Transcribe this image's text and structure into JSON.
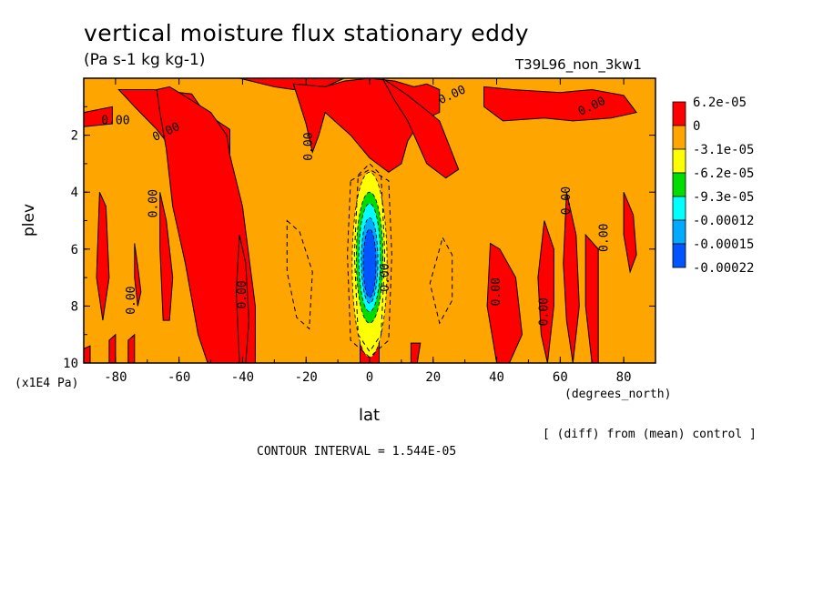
{
  "title": "vertical moisture flux stationary eddy",
  "units": "(Pa s-1 kg kg-1)",
  "experiment": "T39L96_non_3kw1",
  "footer": {
    "diff_note": "[ (diff) from (mean) control ]",
    "contour_interval": "CONTOUR INTERVAL = 1.544E-05"
  },
  "chart_data": {
    "type": "heatmap",
    "xlabel": "lat",
    "xunits": "(degrees_north)",
    "ylabel": "plev",
    "yunits": "(x1E4 Pa)",
    "xlim": [
      -90,
      90
    ],
    "ylim": [
      10,
      0
    ],
    "x_ticks": [
      -80,
      -60,
      -40,
      -20,
      0,
      20,
      40,
      60,
      80
    ],
    "y_ticks": [
      2,
      4,
      6,
      8,
      10
    ],
    "contour_label": "0.00",
    "colorbar": {
      "labels": [
        "6.2e-05",
        "0",
        "-3.1e-05",
        "-6.2e-05",
        "-9.3e-05",
        "-0.00012",
        "-0.00015",
        "-0.00022"
      ],
      "colors": [
        "#ff0000",
        "#ffa500",
        "#ffff00",
        "#00dd00",
        "#00ffff",
        "#00aaff",
        "#0055ff"
      ]
    },
    "background_color": "#ffa500",
    "positive_regions": [
      {
        "lon": [
          -90,
          -81,
          -81,
          -90
        ],
        "lev": [
          1.2,
          1.0,
          1.6,
          1.7
        ]
      },
      {
        "lon": [
          -79,
          -68,
          -56,
          -52,
          -44,
          -44,
          -54,
          -60,
          -67,
          -74
        ],
        "lev": [
          0.4,
          0.4,
          0.55,
          1.2,
          1.8,
          2.7,
          3.0,
          2.8,
          1.8,
          1.0
        ]
      },
      {
        "lon": [
          -67,
          -63,
          -60,
          -50,
          -45,
          -44,
          -40,
          -36,
          -36,
          -51,
          -54,
          -58,
          -62,
          -64,
          -66
        ],
        "lev": [
          0.4,
          0.3,
          0.5,
          1.2,
          2.0,
          2.7,
          4.5,
          8.0,
          10.0,
          10.0,
          9.0,
          6.5,
          4.5,
          2.5,
          1.2
        ]
      },
      {
        "lon": [
          -41,
          -30,
          -24,
          -14,
          -8,
          -8,
          -10,
          -20,
          -30,
          -38
        ],
        "lev": [
          0.0,
          0.3,
          0.4,
          0.3,
          0.0,
          0.0,
          0.0,
          0.0,
          0.0,
          0.0
        ]
      },
      {
        "lon": [
          -24,
          -14,
          -8,
          0,
          8,
          14,
          18,
          22,
          22,
          16,
          12,
          10,
          6,
          0,
          -6,
          -10,
          -14,
          -16,
          -18,
          -20
        ],
        "lev": [
          0.2,
          0.3,
          0.1,
          0.0,
          0.1,
          0.3,
          0.2,
          0.4,
          1.2,
          1.5,
          2.2,
          3.0,
          3.3,
          2.8,
          2.0,
          1.6,
          1.2,
          2.0,
          2.6,
          1.6
        ]
      },
      {
        "lon": [
          4,
          12,
          22,
          28,
          24,
          18,
          14,
          12,
          8
        ],
        "lev": [
          0.0,
          0.6,
          1.5,
          3.2,
          3.5,
          3.0,
          2.0,
          1.5,
          0.8
        ]
      },
      {
        "lon": [
          36,
          45,
          60,
          70,
          80,
          84,
          76,
          64,
          55,
          42,
          36
        ],
        "lev": [
          0.3,
          0.4,
          0.5,
          0.4,
          0.6,
          1.2,
          1.4,
          1.5,
          1.4,
          1.5,
          1.0
        ]
      },
      {
        "lon": [
          -85,
          -83,
          -82,
          -84,
          -86
        ],
        "lev": [
          4.0,
          4.5,
          7.0,
          8.5,
          7.0
        ]
      },
      {
        "lon": [
          -74,
          -73,
          -72,
          -73,
          -74
        ],
        "lev": [
          5.8,
          6.6,
          7.5,
          8.0,
          7.0
        ]
      },
      {
        "lon": [
          -66,
          -64,
          -62,
          -63,
          -65,
          -66
        ],
        "lev": [
          4.0,
          5.0,
          7.0,
          8.5,
          8.5,
          6.0
        ]
      },
      {
        "lon": [
          -41,
          -39,
          -38,
          -39,
          -41,
          -42
        ],
        "lev": [
          5.5,
          6.5,
          8.5,
          10.0,
          10.0,
          7.5
        ]
      },
      {
        "lon": [
          38,
          41,
          46,
          48,
          44,
          40,
          37
        ],
        "lev": [
          5.8,
          6.0,
          7.0,
          9.0,
          10.0,
          10.0,
          8.0
        ]
      },
      {
        "lon": [
          55,
          58,
          58,
          56,
          54,
          53
        ],
        "lev": [
          5.0,
          6.0,
          8.0,
          10.0,
          9.0,
          7.0
        ]
      },
      {
        "lon": [
          62,
          65,
          66,
          64,
          62,
          61
        ],
        "lev": [
          4.0,
          5.5,
          8.0,
          10.0,
          8.5,
          6.5
        ]
      },
      {
        "lon": [
          68,
          72,
          72,
          70,
          68
        ],
        "lev": [
          5.5,
          6.0,
          10.0,
          10.0,
          8.0
        ]
      },
      {
        "lon": [
          80,
          83,
          84,
          82,
          80
        ],
        "lev": [
          4.0,
          4.8,
          6.2,
          6.8,
          5.5
        ]
      },
      {
        "lon": [
          -3,
          0,
          3,
          3,
          -3
        ],
        "lev": [
          9.0,
          8.6,
          9.0,
          10.0,
          10.0
        ]
      },
      {
        "lon": [
          -90,
          -88,
          -88,
          -90
        ],
        "lev": [
          9.5,
          9.4,
          10.0,
          10.0
        ]
      },
      {
        "lon": [
          -82,
          -80,
          -80,
          -82
        ],
        "lev": [
          9.2,
          9.0,
          10.0,
          10.0
        ]
      },
      {
        "lon": [
          -76,
          -74,
          -74,
          -76
        ],
        "lev": [
          9.2,
          9.0,
          10.0,
          10.0
        ]
      },
      {
        "lon": [
          13,
          16,
          15,
          13
        ],
        "lev": [
          9.3,
          9.3,
          10.0,
          10.0
        ]
      }
    ],
    "negative_core": {
      "center_lon": 0,
      "levels": [
        {
          "color": "#ffff00",
          "half_width": 5.5,
          "top": 3.3,
          "bottom": 9.8
        },
        {
          "color": "#00dd00",
          "half_width": 4.2,
          "top": 4.0,
          "bottom": 8.6
        },
        {
          "color": "#00ffff",
          "half_width": 3.4,
          "top": 4.4,
          "bottom": 8.2
        },
        {
          "color": "#00aaff",
          "half_width": 2.6,
          "top": 4.9,
          "bottom": 7.9
        },
        {
          "color": "#0055ff",
          "half_width": 2.0,
          "top": 5.3,
          "bottom": 7.7
        }
      ]
    },
    "dashed_contours": [
      {
        "lon": [
          -26,
          -22,
          -18,
          -19,
          -23,
          -26
        ],
        "lev": [
          5.0,
          5.4,
          6.8,
          8.8,
          8.4,
          6.8
        ]
      },
      {
        "lon": [
          23,
          26,
          26,
          22,
          19
        ],
        "lev": [
          5.6,
          6.2,
          7.8,
          8.6,
          7.2
        ]
      },
      {
        "lon": [
          -3.6,
          0,
          3.6,
          4.8,
          3.6,
          0,
          -3.6,
          -4.8
        ],
        "lev": [
          3.4,
          3.0,
          3.4,
          6.2,
          9.0,
          9.6,
          9.0,
          6.2
        ]
      },
      {
        "lon": [
          -6,
          0,
          6,
          7,
          6,
          0,
          -6,
          -7
        ],
        "lev": [
          3.6,
          3.2,
          3.6,
          6.2,
          9.2,
          9.8,
          9.2,
          6.2
        ]
      }
    ],
    "contour_label_positions": [
      {
        "lon": -80,
        "lev": 1.5,
        "angle": 0
      },
      {
        "lon": -64,
        "lev": 1.9,
        "angle": -25
      },
      {
        "lon": -68,
        "lev": 4.4,
        "angle": -90
      },
      {
        "lon": -75,
        "lev": 7.8,
        "angle": -90
      },
      {
        "lon": -40,
        "lev": 7.6,
        "angle": -90
      },
      {
        "lon": -19,
        "lev": 2.4,
        "angle": -90
      },
      {
        "lon": 26,
        "lev": 0.6,
        "angle": -25
      },
      {
        "lon": 40,
        "lev": 7.5,
        "angle": -90
      },
      {
        "lon": 55,
        "lev": 8.2,
        "angle": -90
      },
      {
        "lon": 62,
        "lev": 4.3,
        "angle": -90
      },
      {
        "lon": 74,
        "lev": 5.6,
        "angle": -90
      },
      {
        "lon": 70,
        "lev": 1.0,
        "angle": -25
      },
      {
        "lon": 5,
        "lev": 7.0,
        "angle": -90
      }
    ]
  }
}
